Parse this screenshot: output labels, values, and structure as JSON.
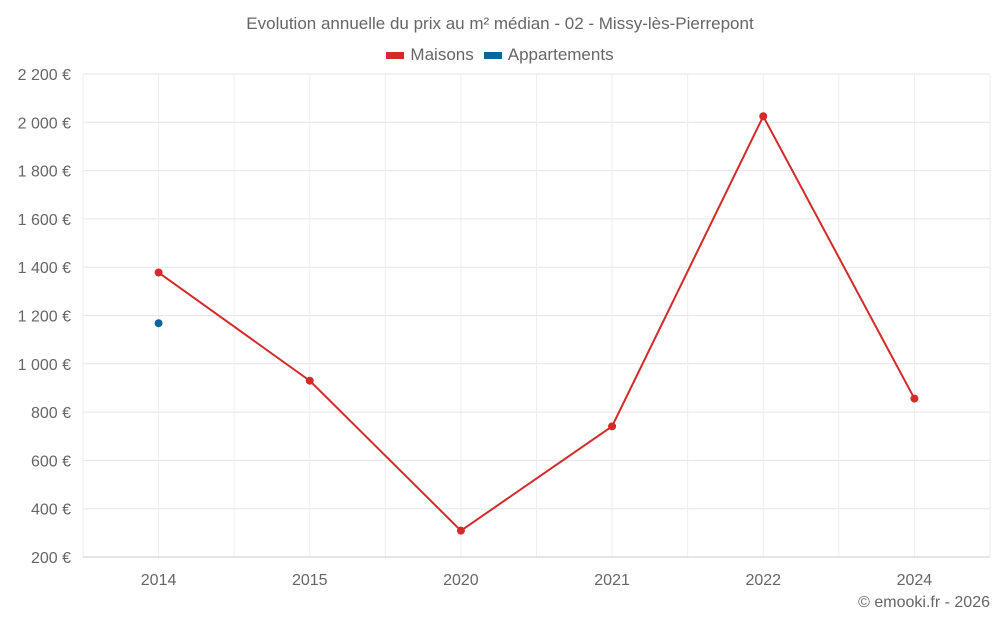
{
  "chart_data": {
    "type": "line",
    "title": "Evolution annuelle du prix au m² médian - 02 - Missy-lès-Pierrepont",
    "xlabel": "",
    "ylabel": "",
    "categories": [
      "2014",
      "2015",
      "2020",
      "2021",
      "2022",
      "2024"
    ],
    "series": [
      {
        "name": "Maisons",
        "color": "#d32a2a",
        "values": [
          1378,
          930,
          309,
          741,
          2025,
          856
        ]
      },
      {
        "name": "Appartements",
        "color": "#0a6699",
        "values": [
          1168,
          null,
          null,
          null,
          null,
          null
        ]
      }
    ],
    "ylim": [
      200,
      2200
    ],
    "yticks": [
      200,
      400,
      600,
      800,
      1000,
      1200,
      1400,
      1600,
      1800,
      2000,
      2200
    ],
    "ytick_labels": [
      "200 €",
      "400 €",
      "600 €",
      "800 €",
      "1 000 €",
      "1 200 €",
      "1 400 €",
      "1 600 €",
      "1 800 €",
      "2 000 €",
      "2 200 €"
    ],
    "grid": true,
    "legend_position": "top"
  },
  "legend": {
    "items": [
      {
        "label": "Maisons",
        "color": "#d32a2a"
      },
      {
        "label": "Appartements",
        "color": "#0a6699"
      }
    ]
  },
  "credits": "© emooki.fr - 2026"
}
